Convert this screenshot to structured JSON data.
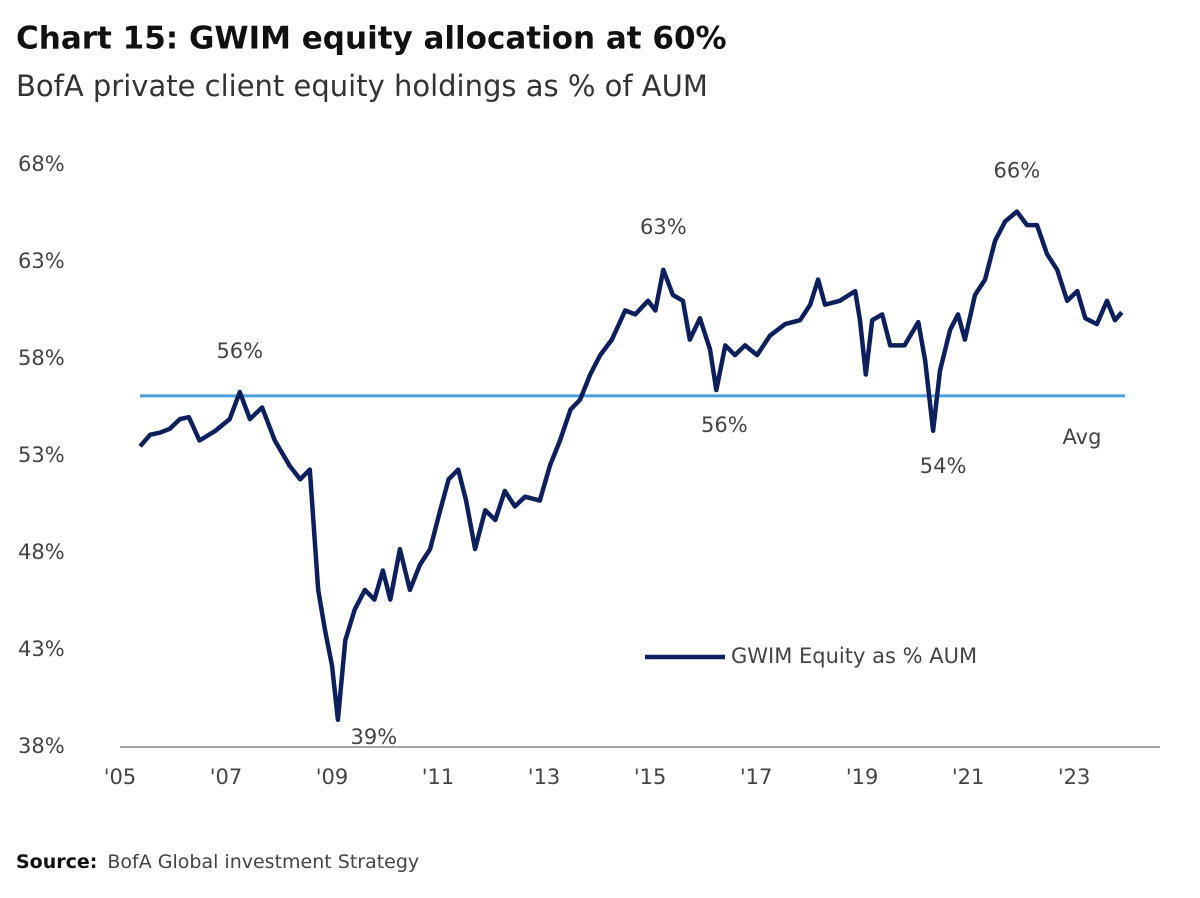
{
  "chart_data": {
    "type": "line",
    "title": "Chart 15: GWIM equity allocation at 60%",
    "subtitle": "BofA private client equity holdings as % of AUM",
    "source_label": "Source:",
    "source": "BofA Global investment Strategy",
    "xlim": [
      2005,
      2024.62
    ],
    "ylim": [
      38,
      68
    ],
    "xticks": [
      {
        "value": 2005,
        "label": "'05"
      },
      {
        "value": 2007,
        "label": "'07"
      },
      {
        "value": 2009,
        "label": "'09"
      },
      {
        "value": 2011,
        "label": "'11"
      },
      {
        "value": 2013,
        "label": "'13"
      },
      {
        "value": 2015,
        "label": "'15"
      },
      {
        "value": 2017,
        "label": "'17"
      },
      {
        "value": 2019,
        "label": "'19"
      },
      {
        "value": 2021,
        "label": "'21"
      },
      {
        "value": 2023,
        "label": "'23"
      }
    ],
    "yticks": [
      {
        "value": 38,
        "label": "38%"
      },
      {
        "value": 43,
        "label": "43%"
      },
      {
        "value": 48,
        "label": "48%"
      },
      {
        "value": 53,
        "label": "53%"
      },
      {
        "value": 58,
        "label": "58%"
      },
      {
        "value": 63,
        "label": "63%"
      },
      {
        "value": 68,
        "label": "68%"
      }
    ],
    "grid": false,
    "legend": "lower-right",
    "reference_line": {
      "label": "Avg",
      "value": 56.1,
      "color": "#4a9fdc"
    },
    "x": [
      2005.38,
      2005.57,
      2005.75,
      2005.94,
      2006.13,
      2006.3,
      2006.5,
      2006.8,
      2007.07,
      2007.26,
      2007.45,
      2007.68,
      2007.92,
      2008.2,
      2008.4,
      2008.58,
      2008.74,
      2008.87,
      2009.0,
      2009.11,
      2009.25,
      2009.43,
      2009.62,
      2009.8,
      2009.96,
      2010.1,
      2010.28,
      2010.47,
      2010.66,
      2010.85,
      2011.04,
      2011.2,
      2011.38,
      2011.53,
      2011.7,
      2011.89,
      2012.08,
      2012.26,
      2012.45,
      2012.64,
      2012.92,
      2013.11,
      2013.3,
      2013.5,
      2013.68,
      2013.87,
      2014.06,
      2014.28,
      2014.53,
      2014.72,
      2014.96,
      2015.1,
      2015.25,
      2015.43,
      2015.62,
      2015.75,
      2015.94,
      2016.13,
      2016.25,
      2016.42,
      2016.6,
      2016.79,
      2017.02,
      2017.26,
      2017.55,
      2017.83,
      2018.02,
      2018.17,
      2018.3,
      2018.58,
      2018.87,
      2018.96,
      2019.07,
      2019.19,
      2019.38,
      2019.53,
      2019.8,
      2020.06,
      2020.19,
      2020.34,
      2020.47,
      2020.66,
      2020.81,
      2020.94,
      2021.13,
      2021.32,
      2021.51,
      2021.7,
      2021.92,
      2022.11,
      2022.3,
      2022.49,
      2022.68,
      2022.87,
      2023.06,
      2023.21,
      2023.43,
      2023.62,
      2023.77,
      2023.9
    ],
    "series": [
      {
        "name": "GWIM Equity as % AUM",
        "color": "#0d1f5c",
        "values": [
          53.5,
          54.1,
          54.2,
          54.4,
          54.9,
          55.0,
          53.8,
          54.3,
          54.9,
          56.3,
          54.9,
          55.5,
          53.8,
          52.5,
          51.8,
          52.3,
          46.1,
          44.0,
          42.2,
          39.4,
          43.5,
          45.1,
          46.1,
          45.6,
          47.1,
          45.6,
          48.2,
          46.1,
          47.4,
          48.2,
          50.2,
          51.8,
          52.3,
          50.7,
          48.2,
          50.2,
          49.7,
          51.2,
          50.4,
          50.9,
          50.7,
          52.5,
          53.8,
          55.4,
          55.9,
          57.2,
          58.2,
          59.0,
          60.5,
          60.3,
          61.0,
          60.5,
          62.6,
          61.3,
          61.0,
          59.0,
          60.1,
          58.5,
          56.4,
          58.7,
          58.2,
          58.7,
          58.2,
          59.2,
          59.8,
          60.0,
          60.8,
          62.1,
          60.8,
          61.0,
          61.5,
          60.0,
          57.2,
          60.0,
          60.3,
          58.7,
          58.7,
          59.9,
          57.9,
          54.3,
          57.4,
          59.5,
          60.3,
          59.0,
          61.3,
          62.1,
          64.1,
          65.1,
          65.6,
          64.9,
          64.9,
          63.4,
          62.6,
          61.0,
          61.5,
          60.1,
          59.8,
          61.0,
          60.0,
          60.4
        ]
      }
    ],
    "annotations": [
      {
        "text": "56%",
        "x": 2007.26,
        "y": 56.3
      },
      {
        "text": "39%",
        "x": 2009.11,
        "y": 39.4
      },
      {
        "text": "63%",
        "x": 2015.25,
        "y": 62.6
      },
      {
        "text": "56%",
        "x": 2016.25,
        "y": 56.4
      },
      {
        "text": "54%",
        "x": 2020.34,
        "y": 54.3
      },
      {
        "text": "66%",
        "x": 2021.92,
        "y": 65.6
      }
    ]
  }
}
